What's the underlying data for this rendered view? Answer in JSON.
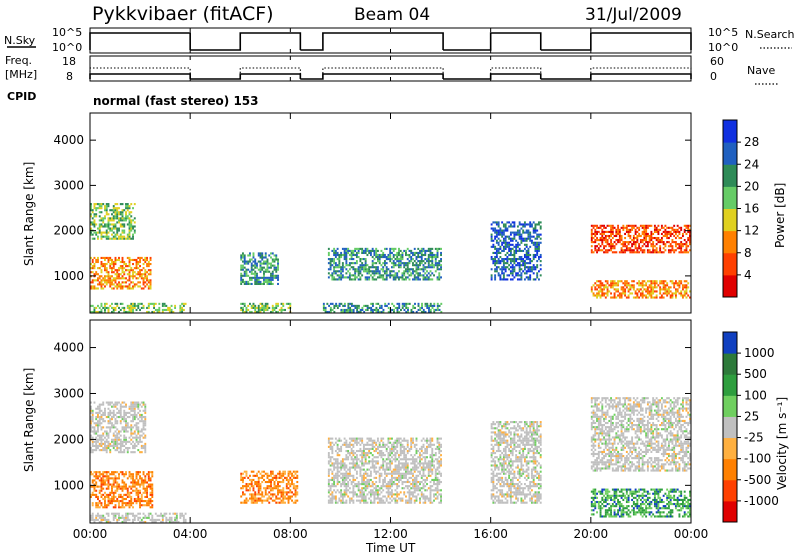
{
  "header": {
    "station": "Pykkvibaer (fitACF)",
    "beam": "Beam 04",
    "date": "31/Jul/2009"
  },
  "top_panels": {
    "nsky_label": "N.Sky",
    "nsky_ticks": [
      "10^5",
      "10^0"
    ],
    "nsearch_label": "N.Search",
    "nsearch_ticks": [
      "10^5",
      "10^0"
    ],
    "freq_label_line1": "Freq.",
    "freq_label_line2": "[MHz]",
    "freq_ticks": [
      "18",
      "8"
    ],
    "nave_label": "Nave",
    "nave_ticks": [
      "60",
      "0"
    ],
    "cpid_label": "CPID",
    "cpid_text": "normal (fast stereo) 153"
  },
  "chart_data": [
    {
      "type": "heatmap",
      "panel": "power",
      "xlabel": "Time UT",
      "ylabel": "Slant Range [km]",
      "x_ticks": [
        "00:00",
        "04:00",
        "08:00",
        "12:00",
        "16:00",
        "20:00",
        "00:00"
      ],
      "xlim_hours": [
        0,
        24
      ],
      "y_ticks": [
        1000,
        2000,
        3000,
        4000
      ],
      "ylim": [
        180,
        4600
      ],
      "colorbar_label": "Power [dB]",
      "colorbar_ticks": [
        "4",
        "8",
        "12",
        "16",
        "20",
        "24",
        "28"
      ],
      "colorbar_colors": [
        "#1030e0",
        "#2060c0",
        "#2e8b57",
        "#66cc66",
        "#e0d020",
        "#ff8000",
        "#ff4000",
        "#e00000"
      ],
      "data_intervals_hours": [
        [
          0,
          4
        ],
        [
          6,
          8.4
        ],
        [
          9.3,
          14.1
        ],
        [
          16,
          18
        ],
        [
          20,
          24
        ]
      ],
      "echo_regions": [
        {
          "t": [
            0,
            3.8
          ],
          "r": [
            180,
            400
          ],
          "level": 3
        },
        {
          "t": [
            0,
            1.8
          ],
          "r": [
            1800,
            2600
          ],
          "level": 3
        },
        {
          "t": [
            0,
            2.4
          ],
          "r": [
            700,
            1400
          ],
          "level": 5
        },
        {
          "t": [
            6.0,
            8.0
          ],
          "r": [
            180,
            400
          ],
          "level": 3
        },
        {
          "t": [
            6.0,
            7.5
          ],
          "r": [
            800,
            1500
          ],
          "level": 2
        },
        {
          "t": [
            9.5,
            14.0
          ],
          "r": [
            900,
            1600
          ],
          "level": 2
        },
        {
          "t": [
            9.3,
            14.0
          ],
          "r": [
            180,
            400
          ],
          "level": 2
        },
        {
          "t": [
            16.0,
            18.0
          ],
          "r": [
            900,
            2200
          ],
          "level": 1
        },
        {
          "t": [
            20.0,
            24.0
          ],
          "r": [
            1500,
            2100
          ],
          "level": 6
        },
        {
          "t": [
            20.0,
            24.0
          ],
          "r": [
            500,
            900
          ],
          "level": 5
        }
      ]
    },
    {
      "type": "heatmap",
      "panel": "velocity",
      "xlabel": "Time UT",
      "ylabel": "Slant Range [km]",
      "x_ticks": [
        "00:00",
        "04:00",
        "08:00",
        "12:00",
        "16:00",
        "20:00",
        "00:00"
      ],
      "xlim_hours": [
        0,
        24
      ],
      "y_ticks": [
        1000,
        2000,
        3000,
        4000
      ],
      "ylim": [
        180,
        4600
      ],
      "colorbar_label": "Velocity [m s⁻¹]",
      "colorbar_ticks": [
        "1000",
        "500",
        "100",
        "25",
        "-25",
        "-100",
        "-500",
        "-1000"
      ],
      "colorbar_colors": [
        "#1040c0",
        "#2d7a3a",
        "#2e9e3e",
        "#6fcf5f",
        "#c0c0c0",
        "#ffb040",
        "#ff8000",
        "#ff4000",
        "#e00000"
      ],
      "data_intervals_hours": [
        [
          0,
          4
        ],
        [
          6,
          8.4
        ],
        [
          9.3,
          14.1
        ],
        [
          16,
          18
        ],
        [
          20,
          24
        ]
      ],
      "echo_regions": [
        {
          "t": [
            0,
            3.8
          ],
          "r": [
            180,
            400
          ],
          "class": "low"
        },
        {
          "t": [
            0,
            2.2
          ],
          "r": [
            1700,
            2800
          ],
          "class": "low"
        },
        {
          "t": [
            0,
            2.5
          ],
          "r": [
            500,
            1300
          ],
          "class": "away"
        },
        {
          "t": [
            6.0,
            8.3
          ],
          "r": [
            600,
            1300
          ],
          "class": "away"
        },
        {
          "t": [
            9.5,
            14.0
          ],
          "r": [
            600,
            2000
          ],
          "class": "low"
        },
        {
          "t": [
            16.0,
            18.0
          ],
          "r": [
            600,
            2400
          ],
          "class": "low"
        },
        {
          "t": [
            20.0,
            24.0
          ],
          "r": [
            1300,
            2900
          ],
          "class": "low"
        },
        {
          "t": [
            20.0,
            24.0
          ],
          "r": [
            300,
            900
          ],
          "class": "toward"
        }
      ]
    }
  ]
}
